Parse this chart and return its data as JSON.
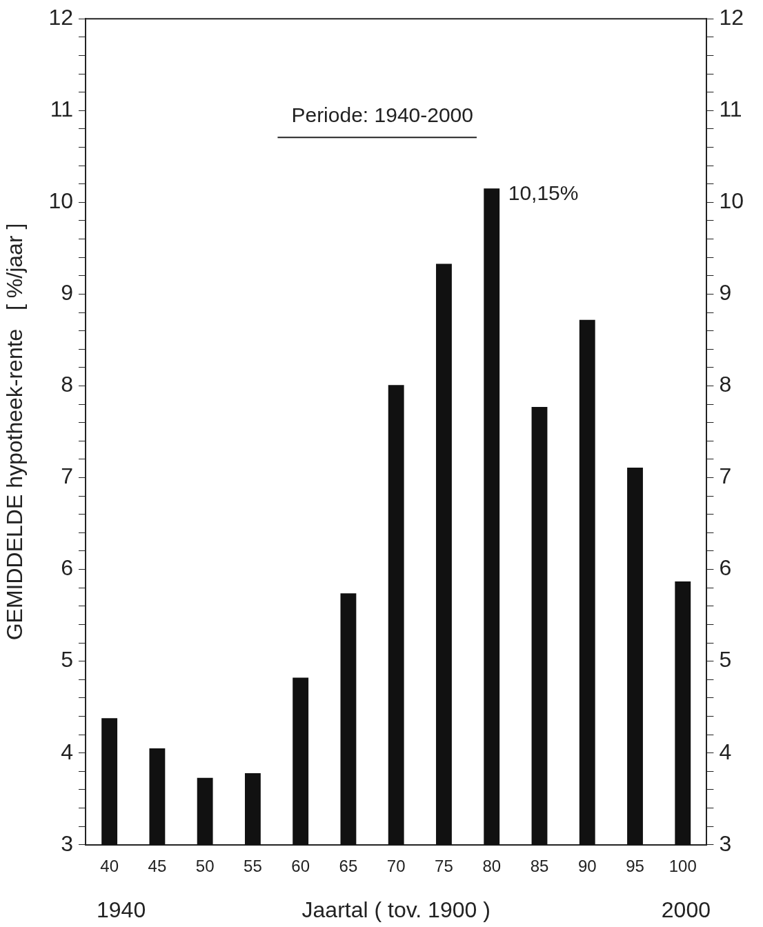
{
  "chart_data": {
    "type": "bar",
    "title": "Periode: 1940-2000",
    "xlabel": "Jaartal ( tov. 1900 )",
    "ylabel": "GEMIDDELDE hypotheek-rente   [ %/jaar ]",
    "categories": [
      "40",
      "45",
      "50",
      "55",
      "60",
      "65",
      "70",
      "75",
      "80",
      "85",
      "90",
      "95",
      "100"
    ],
    "values": [
      4.38,
      4.05,
      3.73,
      3.78,
      4.82,
      5.74,
      8.01,
      9.33,
      10.15,
      7.77,
      8.72,
      7.11,
      5.87
    ],
    "color": "#111111",
    "ylim": [
      3,
      12
    ],
    "yticks": [
      3,
      {
        "value": 3.2,
        "label": null
      },
      {
        "value": 3.4,
        "label": null
      },
      {
        "value": 3.6,
        "label": null
      },
      {
        "value": 3.8,
        "label": null
      },
      4,
      {
        "value": 4.2,
        "label": null
      },
      {
        "value": 4.4,
        "label": null
      },
      {
        "value": 4.6,
        "label": null
      },
      {
        "value": 4.8,
        "label": null
      },
      5,
      {
        "value": 5.2,
        "label": null
      },
      {
        "value": 5.4,
        "label": null
      },
      {
        "value": 5.6,
        "label": null
      },
      {
        "value": 5.8,
        "label": null
      },
      6,
      {
        "value": 6.2,
        "label": null
      },
      {
        "value": 6.4,
        "label": null
      },
      {
        "value": 6.6,
        "label": null
      },
      {
        "value": 6.8,
        "label": null
      },
      7,
      {
        "value": 7.2,
        "label": null
      },
      {
        "value": 7.4,
        "label": null
      },
      {
        "value": 7.6,
        "label": null
      },
      {
        "value": 7.8,
        "label": null
      },
      8,
      {
        "value": 8.2,
        "label": null
      },
      {
        "value": 8.4,
        "label": null
      },
      {
        "value": 8.6,
        "label": null
      },
      {
        "value": 8.8,
        "label": null
      },
      9,
      {
        "value": 9.2,
        "label": null
      },
      {
        "value": 9.4,
        "label": null
      },
      {
        "value": 9.6,
        "label": null
      },
      {
        "value": 9.8,
        "label": null
      },
      10,
      {
        "value": 10.2,
        "label": null
      },
      {
        "value": 10.4,
        "label": null
      },
      {
        "value": 10.6,
        "label": null
      },
      {
        "value": 10.8,
        "label": null
      },
      11,
      {
        "value": 11.2,
        "label": null
      },
      {
        "value": 11.4,
        "label": null
      },
      {
        "value": 11.6,
        "label": null
      },
      {
        "value": 11.8,
        "label": null
      },
      12
    ],
    "y2lim": [
      3,
      12
    ],
    "y2ticks": [
      3,
      {
        "value": 3.2,
        "label": null
      },
      {
        "value": 3.4,
        "label": null
      },
      {
        "value": 3.6,
        "label": null
      },
      {
        "value": 3.8,
        "label": null
      },
      4,
      {
        "value": 4.2,
        "label": null
      },
      {
        "value": 4.4,
        "label": null
      },
      {
        "value": 4.6,
        "label": null
      },
      {
        "value": 4.8,
        "label": null
      },
      5,
      {
        "value": 5.2,
        "label": null
      },
      {
        "value": 5.4,
        "label": null
      },
      {
        "value": 5.6,
        "label": null
      },
      {
        "value": 5.8,
        "label": null
      },
      6,
      {
        "value": 6.2,
        "label": null
      },
      {
        "value": 6.4,
        "label": null
      },
      {
        "value": 6.6,
        "label": null
      },
      {
        "value": 6.8,
        "label": null
      },
      7,
      {
        "value": 7.2,
        "label": null
      },
      {
        "value": 7.4,
        "label": null
      },
      {
        "value": 7.6,
        "label": null
      },
      {
        "value": 7.8,
        "label": null
      },
      8,
      {
        "value": 8.2,
        "label": null
      },
      {
        "value": 8.4,
        "label": null
      },
      {
        "value": 8.6,
        "label": null
      },
      {
        "value": 8.8,
        "label": null
      },
      9,
      {
        "value": 9.2,
        "label": null
      },
      {
        "value": 9.4,
        "label": null
      },
      {
        "value": 9.6,
        "label": null
      },
      {
        "value": 9.8,
        "label": null
      },
      10,
      {
        "value": 10.2,
        "label": null
      },
      {
        "value": 10.4,
        "label": null
      },
      {
        "value": 10.6,
        "label": null
      },
      {
        "value": 10.8,
        "label": null
      },
      11,
      {
        "value": 11.2,
        "label": null
      },
      {
        "value": 11.4,
        "label": null
      },
      {
        "value": 11.6,
        "label": null
      },
      {
        "value": 11.8,
        "label": null
      },
      12
    ],
    "annotations": [
      {
        "text": "10,15%",
        "x": "80",
        "y": 10.15
      },
      "1940",
      "2000"
    ],
    "grid": false,
    "legend": false
  }
}
